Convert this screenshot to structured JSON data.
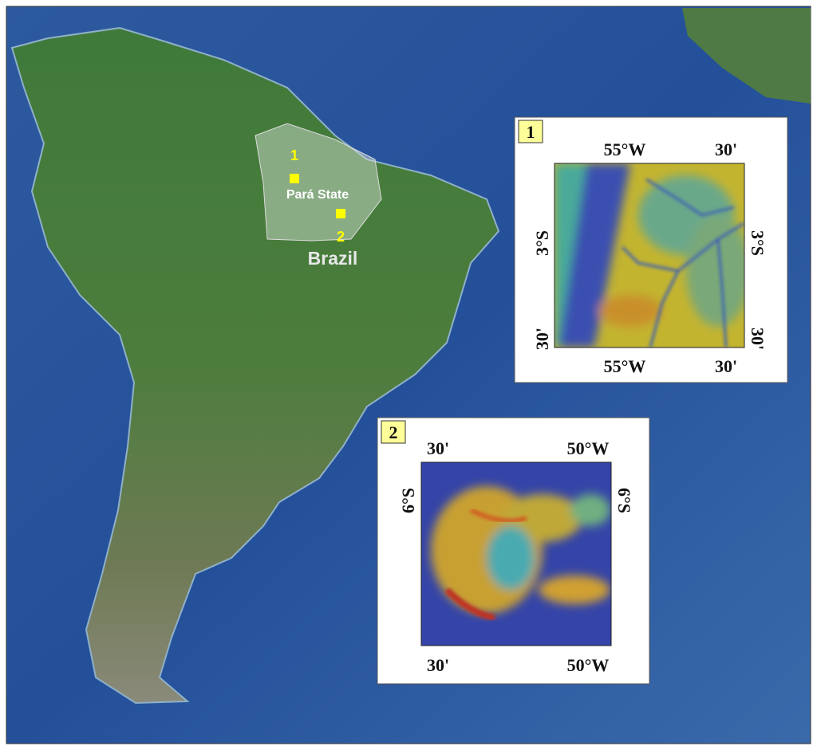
{
  "map": {
    "markers": [
      {
        "label": "1"
      },
      {
        "label": "2"
      }
    ],
    "region_label": "Pará State",
    "country_label": "Brazil"
  },
  "insets": [
    {
      "badge": "1",
      "top_ticks": [
        "55°W",
        "30'"
      ],
      "bottom_ticks": [
        "55°W",
        "30'"
      ],
      "left_ticks": [
        "3°S",
        "30'"
      ],
      "right_ticks": [
        "3°S",
        "30'"
      ]
    },
    {
      "badge": "2",
      "top_ticks": [
        "30'",
        "50°W"
      ],
      "bottom_ticks": [
        "30'",
        "50°W"
      ],
      "left_ticks": [
        "6°S"
      ],
      "right_ticks": [
        "6°S"
      ]
    }
  ]
}
